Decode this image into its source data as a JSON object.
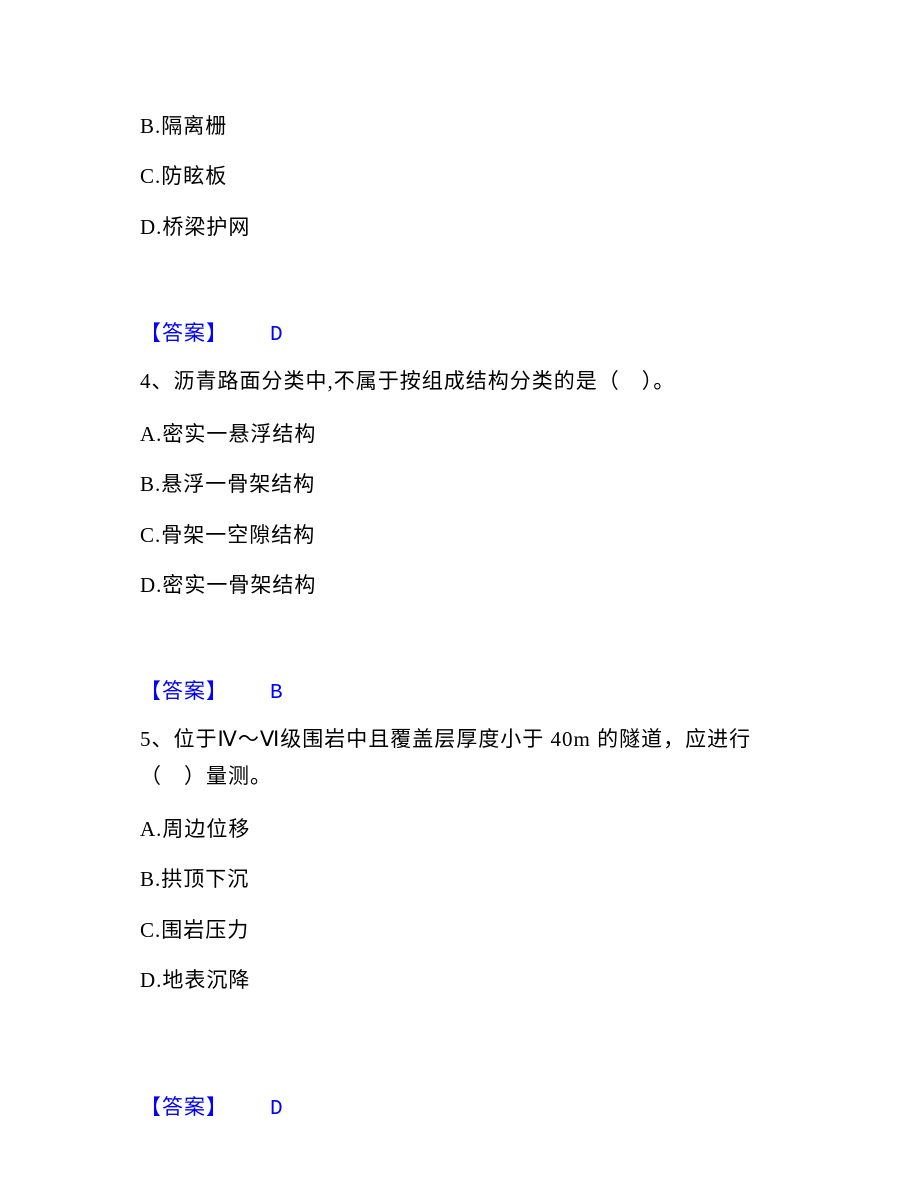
{
  "partial_options": {
    "b": "B.隔离栅",
    "c": "C.防眩板",
    "d": "D.桥梁护网"
  },
  "answer3": {
    "label": "【答案】",
    "value": "D"
  },
  "question4": {
    "text": "4、沥青路面分类中,不属于按组成结构分类的是（　）。",
    "options": {
      "a": "A.密实一悬浮结构",
      "b": "B.悬浮一骨架结构",
      "c": "C.骨架一空隙结构",
      "d": "D.密实一骨架结构"
    }
  },
  "answer4": {
    "label": "【答案】",
    "value": "B"
  },
  "question5": {
    "text": "5、位于Ⅳ～Ⅵ级围岩中且覆盖层厚度小于 40m 的隧道，应进行（　）量测。",
    "options": {
      "a": "A.周边位移",
      "b": "B.拱顶下沉",
      "c": "C.围岩压力",
      "d": "D.地表沉降"
    }
  },
  "answer5": {
    "label": "【答案】",
    "value": "D"
  }
}
